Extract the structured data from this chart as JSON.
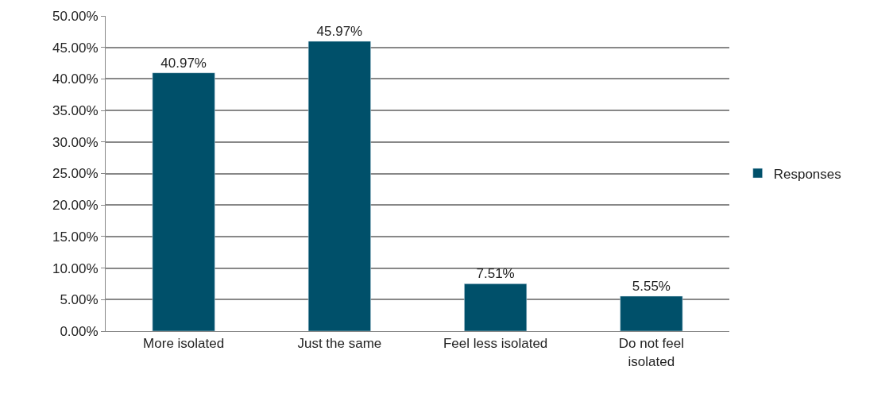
{
  "chart_data": {
    "type": "bar",
    "categories": [
      "More isolated",
      "Just the same",
      "Feel less isolated",
      "Do not feel isolated"
    ],
    "series": [
      {
        "name": "Responses",
        "color": "#00506a",
        "values": [
          40.97,
          45.97,
          7.51,
          5.55
        ],
        "value_labels": [
          "40.97%",
          "45.97%",
          "7.51%",
          "5.55%"
        ]
      }
    ],
    "ylim": [
      0,
      50
    ],
    "yticks": [
      {
        "value": 0,
        "label": "0.00%"
      },
      {
        "value": 5,
        "label": "5.00%"
      },
      {
        "value": 10,
        "label": "10.00%"
      },
      {
        "value": 15,
        "label": "15.00%"
      },
      {
        "value": 20,
        "label": "20.00%"
      },
      {
        "value": 25,
        "label": "25.00%"
      },
      {
        "value": 30,
        "label": "30.00%"
      },
      {
        "value": 35,
        "label": "35.00%"
      },
      {
        "value": 40,
        "label": "40.00%"
      },
      {
        "value": 45,
        "label": "45.00%"
      },
      {
        "value": 50,
        "label": "50.00%"
      }
    ],
    "grid": "y",
    "legend": "right"
  }
}
